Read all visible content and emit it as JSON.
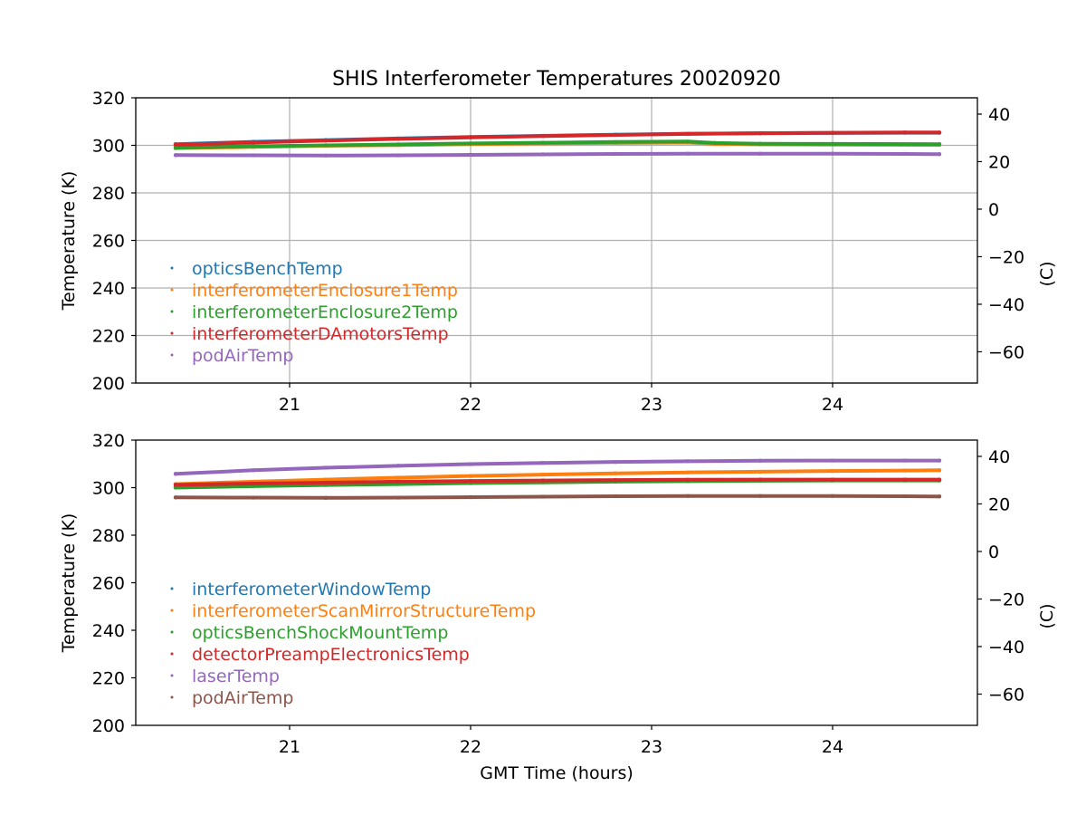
{
  "figure": {
    "title": "SHIS Interferometer Temperatures 20020920",
    "xlabel": "GMT Time (hours)"
  },
  "chart_data": [
    {
      "type": "scatter",
      "ylabel": "Temperature (K)",
      "ylabel_right": "(C)",
      "xlabel": "",
      "xlim": [
        20.15,
        24.8
      ],
      "ylim": [
        200,
        320
      ],
      "ylim_right": [
        -73.15,
        46.85
      ],
      "xticks": [
        21,
        22,
        23,
        24
      ],
      "yticks": [
        200,
        220,
        240,
        260,
        280,
        300,
        320
      ],
      "yticks_right": [
        -60,
        -40,
        -20,
        0,
        20,
        40
      ],
      "grid": true,
      "legend_position": "lower-left",
      "series": [
        {
          "name": "opticsBenchTemp",
          "color": "#1f77b4",
          "x": [
            20.37,
            20.8,
            21.2,
            21.6,
            22.0,
            22.4,
            22.8,
            23.2,
            23.6,
            24.0,
            24.4,
            24.59
          ],
          "y": [
            300.5,
            301.5,
            302.2,
            302.9,
            303.5,
            304.0,
            304.5,
            304.9,
            305.1,
            305.2,
            305.3,
            305.3
          ]
        },
        {
          "name": "interferometerEnclosure1Temp",
          "color": "#ff7f0e",
          "x": [
            20.37,
            20.8,
            21.2,
            21.6,
            22.0,
            22.4,
            22.8,
            23.2,
            23.35,
            23.6,
            24.0,
            24.59
          ],
          "y": [
            298.8,
            299.3,
            299.8,
            300.1,
            300.5,
            300.8,
            301.0,
            301.2,
            300.6,
            300.4,
            300.3,
            300.2
          ]
        },
        {
          "name": "interferometerEnclosure2Temp",
          "color": "#2ca02c",
          "x": [
            20.37,
            20.8,
            21.2,
            21.6,
            22.0,
            22.4,
            22.8,
            23.2,
            23.35,
            23.6,
            24.0,
            24.59
          ],
          "y": [
            299.0,
            299.6,
            300.0,
            300.4,
            300.8,
            301.1,
            301.4,
            301.6,
            301.0,
            300.7,
            300.6,
            300.5
          ]
        },
        {
          "name": "interferometerDAmotorsTemp",
          "color": "#d62728",
          "x": [
            20.37,
            20.8,
            21.2,
            21.6,
            22.0,
            22.4,
            22.8,
            23.2,
            23.6,
            24.0,
            24.4,
            24.59
          ],
          "y": [
            300.2,
            301.2,
            302.0,
            302.7,
            303.3,
            303.9,
            304.4,
            304.8,
            305.1,
            305.3,
            305.4,
            305.4
          ]
        },
        {
          "name": "podAirTemp",
          "color": "#9467bd",
          "x": [
            20.37,
            20.8,
            21.2,
            21.6,
            22.0,
            22.4,
            22.8,
            23.2,
            23.6,
            24.0,
            24.4,
            24.59
          ],
          "y": [
            295.9,
            295.8,
            295.7,
            295.8,
            296.0,
            296.2,
            296.4,
            296.5,
            296.5,
            296.5,
            296.4,
            296.3
          ]
        }
      ]
    },
    {
      "type": "scatter",
      "ylabel": "Temperature (K)",
      "ylabel_right": "(C)",
      "xlabel": "GMT Time (hours)",
      "xlim": [
        20.15,
        24.8
      ],
      "ylim": [
        200,
        320
      ],
      "ylim_right": [
        -73.15,
        46.85
      ],
      "xticks": [
        21,
        22,
        23,
        24
      ],
      "yticks": [
        200,
        220,
        240,
        260,
        280,
        300,
        320
      ],
      "yticks_right": [
        -60,
        -40,
        -20,
        0,
        20,
        40
      ],
      "grid": false,
      "legend_position": "lower-left",
      "series": [
        {
          "name": "interferometerWindowTemp",
          "color": "#1f77b4",
          "x": [
            20.37,
            20.8,
            21.2,
            21.6,
            22.0,
            22.4,
            22.8,
            23.2,
            23.6,
            24.0,
            24.4,
            24.59
          ],
          "y": [
            300.2,
            300.8,
            301.3,
            301.7,
            302.1,
            302.4,
            302.7,
            302.9,
            303.0,
            303.1,
            303.1,
            303.1
          ]
        },
        {
          "name": "interferometerScanMirrorStructureTemp",
          "color": "#ff7f0e",
          "x": [
            20.37,
            20.8,
            21.2,
            21.6,
            22.0,
            22.4,
            22.8,
            23.2,
            23.6,
            24.0,
            24.4,
            24.59
          ],
          "y": [
            301.5,
            302.5,
            303.4,
            304.2,
            304.9,
            305.5,
            306.0,
            306.4,
            306.7,
            307.0,
            307.2,
            307.3
          ]
        },
        {
          "name": "opticsBenchShockMountTemp",
          "color": "#2ca02c",
          "x": [
            20.37,
            20.8,
            21.2,
            21.6,
            22.0,
            22.4,
            22.8,
            23.2,
            23.6,
            24.0,
            24.4,
            24.59
          ],
          "y": [
            300.0,
            300.6,
            301.1,
            301.5,
            301.9,
            302.2,
            302.5,
            302.7,
            302.9,
            303.0,
            303.0,
            303.0
          ]
        },
        {
          "name": "detectorPreampElectronicsTemp",
          "color": "#d62728",
          "x": [
            20.37,
            20.8,
            21.2,
            21.6,
            22.0,
            22.4,
            22.8,
            23.2,
            23.6,
            24.0,
            24.4,
            24.59
          ],
          "y": [
            301.2,
            301.7,
            302.1,
            302.5,
            302.8,
            303.0,
            303.2,
            303.3,
            303.4,
            303.4,
            303.4,
            303.4
          ]
        },
        {
          "name": "laserTemp",
          "color": "#9467bd",
          "x": [
            20.37,
            20.8,
            21.2,
            21.6,
            22.0,
            22.4,
            22.8,
            23.2,
            23.6,
            24.0,
            24.4,
            24.59
          ],
          "y": [
            305.8,
            307.3,
            308.4,
            309.2,
            309.9,
            310.4,
            310.8,
            311.1,
            311.3,
            311.4,
            311.4,
            311.4
          ]
        },
        {
          "name": "podAirTemp",
          "color": "#8c564b",
          "x": [
            20.37,
            20.8,
            21.2,
            21.6,
            22.0,
            22.4,
            22.8,
            23.2,
            23.6,
            24.0,
            24.4,
            24.59
          ],
          "y": [
            295.9,
            295.8,
            295.7,
            295.8,
            296.0,
            296.2,
            296.4,
            296.5,
            296.5,
            296.5,
            296.4,
            296.3
          ]
        }
      ]
    }
  ]
}
